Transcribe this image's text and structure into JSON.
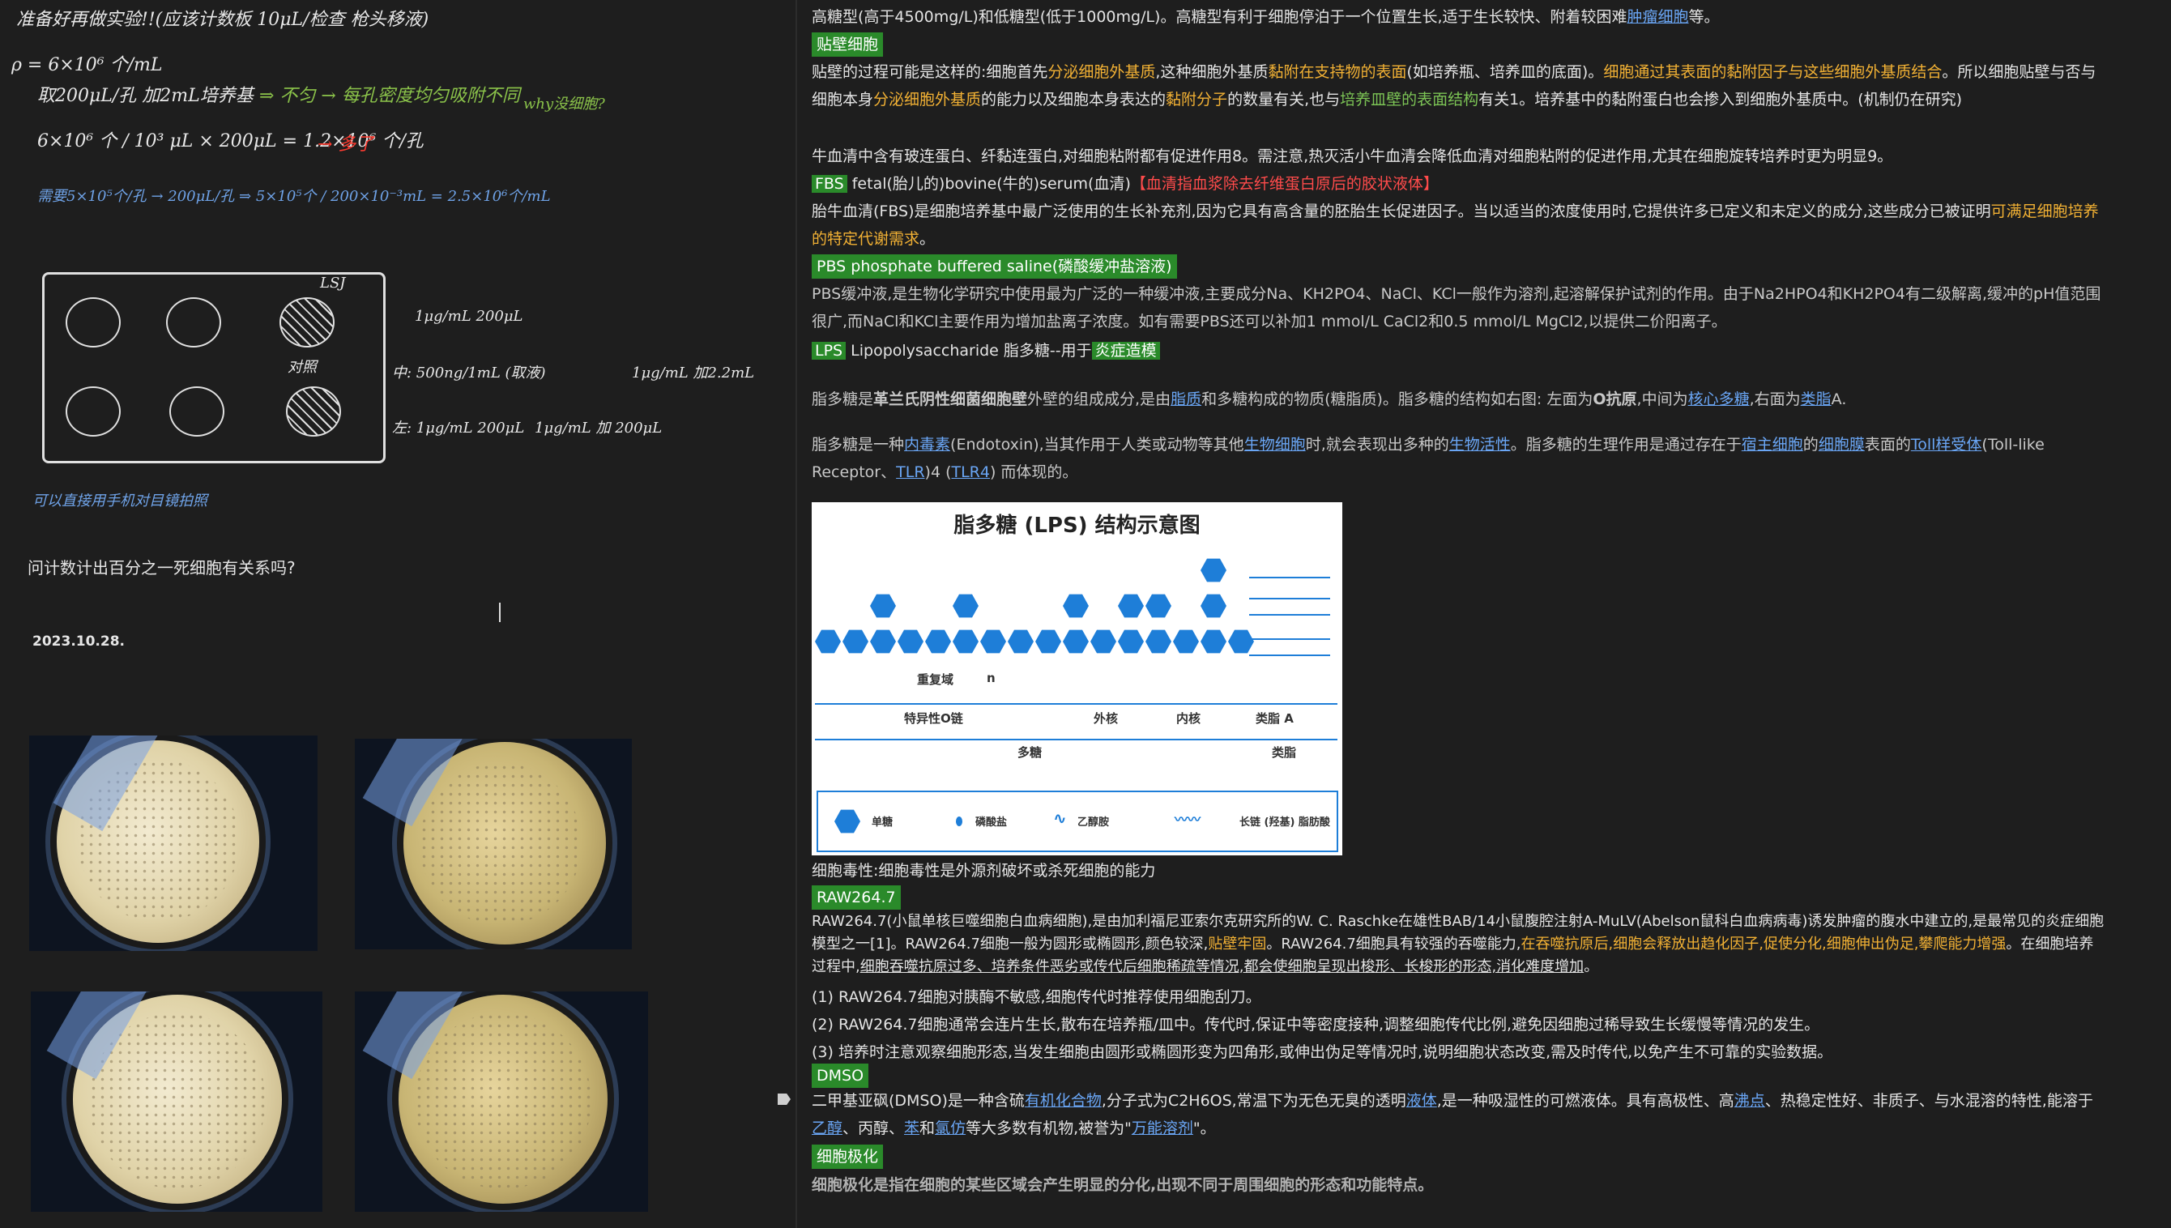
{
  "notes": {
    "line1": "准备好再做实验!!(应该计数板 10μL/检查 枪头移液)",
    "line2": "ρ = 6×10⁶ 个/mL",
    "line3a": "取200μL/孔 加2mL培养基",
    "line3b": "⇒ 不匀 → 每孔密度均匀吸附不同",
    "line3c": "why没细胞?",
    "line4a": "6×10⁶ 个 / 10³ μL × 200μL = 1.2×10⁶ 个/孔",
    "line4b": "→ 多了",
    "line5": "需要5×10⁵个/孔 → 200μL/孔 ⇒ 5×10⁵个 / 200×10⁻³mL = 2.5×10⁶个/mL",
    "plate_label": "LSJ",
    "plate_note": "对照",
    "right1": "1μg/mL   200μL",
    "right2": "中: 500ng/1mL (取液)",
    "right3": "1μg/mL 加2.2mL",
    "right4": "左: 1μg/mL 200μL",
    "right5": "1μg/mL 加 200μL",
    "bottom_note": "可以直接用手机对目镜拍照",
    "question": "问计数计出百分之一死细胞有关系吗?",
    "date": "2023.10.28."
  },
  "doc": {
    "p1": "高糖型(高于4500mg/L)和低糖型(低于1000mg/L)。高糖型有利于细胞停泊于一个位置生长,适于生长较快、附着较困难",
    "p1_link": "肿瘤细胞",
    "p1_end": "等。",
    "h_adherent": "贴壁细胞",
    "p2a": "贴壁的过程可能是这样的:细胞首先",
    "p2b": "分泌细胞外基质",
    "p2c": ",这种细胞外基质",
    "p2d": "黏附在支持物的表面",
    "p2e": "(如培养瓶、培养皿的底面)。",
    "p2f": "细胞通过其表面的黏附因子与这些细胞外基质结合",
    "p2g": "。所以细胞贴壁与否与细胞本身",
    "p2h": "分泌细胞外基质",
    "p2i": "的能力以及细胞本身表达的",
    "p2j": "黏附分子",
    "p2k": "的数量有关,也与",
    "p2l": "培养皿壁的表面结构",
    "p2m": "有关1。培养基中的黏附蛋白也会掺入到细胞外基质中。(机制仍在研究)",
    "p3": "牛血清中含有玻连蛋白、纤黏连蛋白,对细胞粘附都有促进作用8。需注意,热灭活小牛血清会降低血清对细胞粘附的促进作用,尤其在细胞旋转培养时更为明显9。",
    "h_fbs": "FBS",
    "fbs_title": " fetal(胎儿的)bovine(牛的)serum(血清)",
    "fbs_note": "【血清指血浆除去纤维蛋白原后的胶状液体】",
    "p4a": "胎牛血清(FBS)是细胞培养基中最广泛使用的生长补充剂,因为它具有高含量的胚胎生长促进因子。当以适当的浓度使用时,它提供许多已定义和未定义的成分,这些成分已被证明",
    "p4b": "可满足细胞培养的特定代谢需求",
    "p4c": "。",
    "h_pbs": "PBS phosphate buffered saline(磷酸缓冲盐溶液)",
    "p5": "PBS缓冲液,是生物化学研究中使用最为广泛的一种缓冲液,主要成分Na、KH2PO4、NaCl、KCl一般作为溶剂,起溶解保护试剂的作用。由于Na2HPO4和KH2PO4有二级解离,缓冲的pH值范围很广,而NaCl和KCl主要作用为增加盐离子浓度。如有需要PBS还可以补加1 mmol/L CaCl2和0.5 mmol/L MgCl2,以提供二价阳离子。",
    "h_lps": "LPS",
    "lps_title": " Lipopolysaccharide 脂多糖--用于",
    "lps_model": "炎症造模",
    "p6a": "脂多糖是",
    "p6b": "革兰氏阴性细菌细胞壁",
    "p6c": "外壁的组成成分,是由",
    "p6d": "脂质",
    "p6e": "和多糖构成的物质(糖脂质)。脂多糖的结构如右图: 左面为",
    "p6f": "O抗原",
    "p6g": ",中间为",
    "p6h": "核心多糖",
    "p6i": ",右面为",
    "p6j": "类脂",
    "p6k": "A.",
    "p7a": "脂多糖是一种",
    "p7b": "内毒素",
    "p7c": "(Endotoxin),当其作用于人类或动物等其他",
    "p7d": "生物细胞",
    "p7e": "时,就会表现出多种的",
    "p7f": "生物活性",
    "p7g": "。脂多糖的生理作用是通过存在于",
    "p7h": "宿主细胞",
    "p7i": "的",
    "p7j": "细胞膜",
    "p7k": "表面的",
    "p7l": "Toll样受体",
    "p7m": "(Toll-like Receptor、",
    "p7n": "TLR",
    "p7o": ")4 (",
    "p7p": "TLR4",
    "p7q": ") 而体现的。",
    "diagram": {
      "title": "脂多糖 (LPS) 结构示意图",
      "repeat": "重复域",
      "n": "n",
      "o_chain": "特异性O链",
      "outer_core": "外核",
      "inner_core": "内核",
      "lipid_a": "类脂 A",
      "polysaccharide": "多糖",
      "lipid": "类脂",
      "legend_mono": "单糖",
      "legend_phosphate": "磷酸盐",
      "legend_ethanolamine": "乙醇胺",
      "legend_chain": "长链 (羟基) 脂肪酸"
    },
    "p8": "细胞毒性:细胞毒性是外源剂破坏或杀死细胞的能力",
    "h_raw": "RAW264.7",
    "p9a": "RAW264.7(小鼠单核巨噬细胞白血病细胞),是由加利福尼亚索尔克研究所的W. C. Raschke在雄性BAB/14小鼠腹腔注射A-MuLV(Abelson鼠科白血病病毒)诱发肿瘤的腹水中建立的,是最常见的炎症细胞模型之一[1]。RAW264.7细胞一般为圆形或椭圆形,颜色较深,",
    "p9b": "贴壁牢固",
    "p9c": "。RAW264.7细胞具有较强的吞噬能力,",
    "p9d": "在吞噬抗原后,细胞会释放出趋化因子,促使分化,细胞伸出伪足,攀爬能力增强",
    "p9e": "。在细胞培养过程中,",
    "p9f": "细胞吞噬抗原过多、培养条件恶劣或传代后细胞稀疏等情况,都会使细胞呈现出梭形、长梭形的形态,消化难度增加",
    "p9g": "。",
    "l1": "(1) RAW264.7细胞对胰酶不敏感,细胞传代时推荐使用细胞刮刀。",
    "l2": "(2) RAW264.7细胞通常会连片生长,散布在培养瓶/皿中。传代时,保证中等密度接种,调整细胞传代比例,避免因细胞过稀导致生长缓慢等情况的发生。",
    "l3": "(3) 培养时注意观察细胞形态,当发生细胞由圆形或椭圆形变为四角形,或伸出伪足等情况时,说明细胞状态改变,需及时传代,以免产生不可靠的实验数据。",
    "h_dmso": "DMSO",
    "p10a": "二甲基亚砜(DMSO)是一种含硫",
    "p10b": "有机化合物",
    "p10c": ",分子式为C2H6OS,常温下为无色无臭的透明",
    "p10d": "液体",
    "p10e": ",是一种吸湿性的可燃液体。具有高极性、高",
    "p10f": "沸点",
    "p10g": "、热稳定性好、非质子、与水混溶的特性,能溶于",
    "p10h": "乙醇",
    "p10i": "、丙醇、",
    "p10j": "苯",
    "p10k": "和",
    "p10l": "氯仿",
    "p10m": "等大多数有机物,被誉为\"",
    "p10n": "万能溶剂",
    "p10o": "\"。",
    "h_polar": "细胞极化",
    "p11": "细胞极化是指在细胞的某些区域会产生明显的分化,出现不同于周围细胞的形态和功能特点。"
  }
}
